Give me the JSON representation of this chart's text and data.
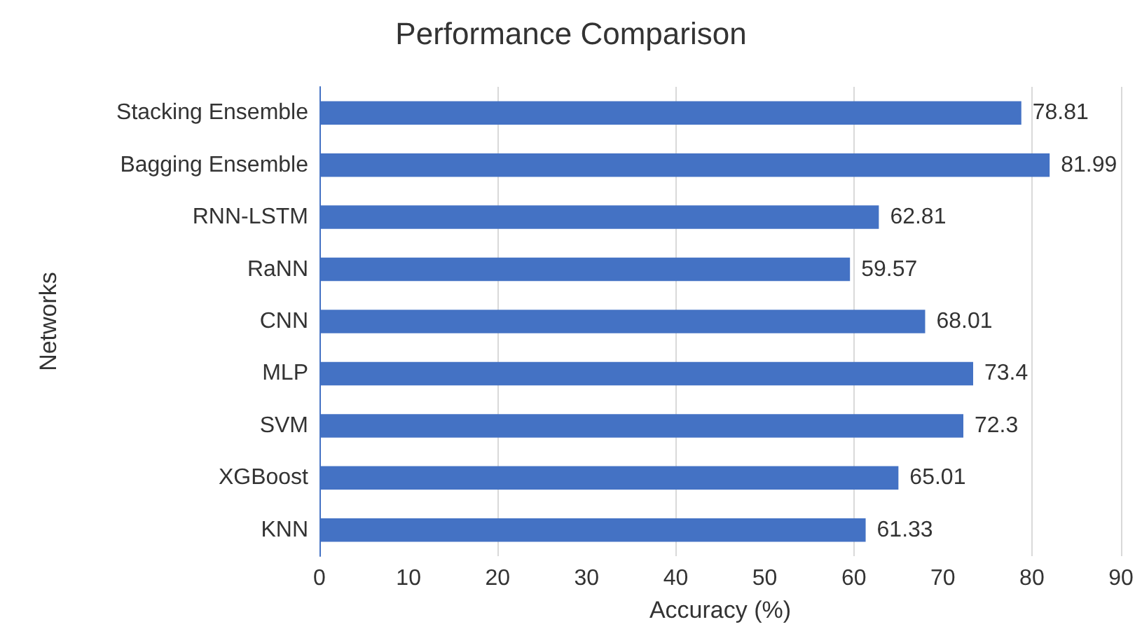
{
  "chart_data": {
    "type": "bar",
    "orientation": "horizontal",
    "title": "Performance Comparison",
    "xlabel": "Accuracy (%)",
    "ylabel": "Networks",
    "categories": [
      "Stacking Ensemble",
      "Bagging Ensemble",
      "RNN-LSTM",
      "RaNN",
      "CNN",
      "MLP",
      "SVM",
      "XGBoost",
      "KNN"
    ],
    "values": [
      78.81,
      81.99,
      62.81,
      59.57,
      68.01,
      73.4,
      72.3,
      65.01,
      61.33
    ],
    "color": "#4472c4",
    "data_labels": true,
    "xlim": [
      0,
      90
    ],
    "xticks": [
      0,
      10,
      20,
      30,
      40,
      50,
      60,
      70,
      80,
      90
    ],
    "grid": "x"
  }
}
